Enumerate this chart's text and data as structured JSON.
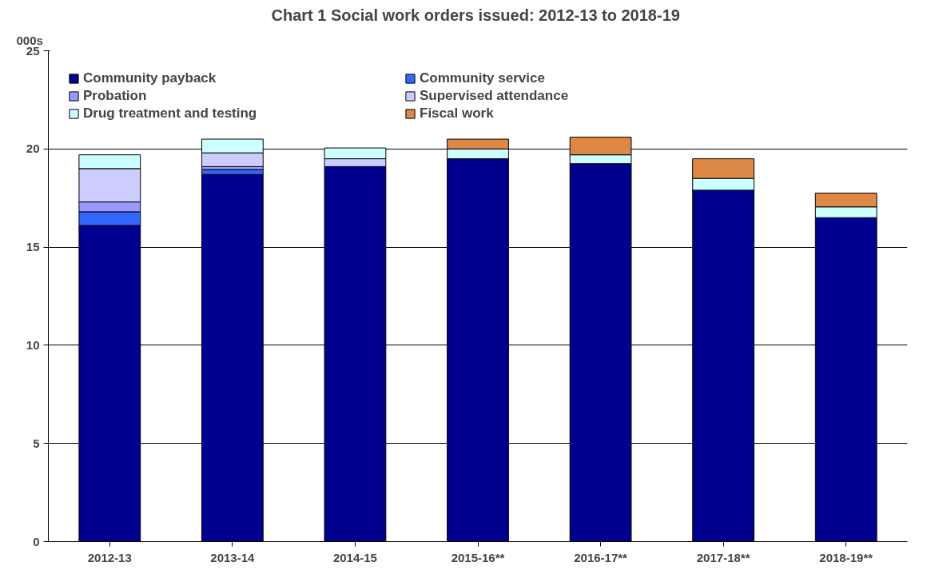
{
  "chart_data": {
    "type": "bar",
    "stacked": true,
    "title": "Chart 1  Social work orders issued: 2012-13 to 2018-19",
    "ylabel": "000s",
    "categories": [
      "2012-13",
      "2013-14",
      "2014-15",
      "2015-16**",
      "2016-17**",
      "2017-18**",
      "2018-19**"
    ],
    "series": [
      {
        "name": "Community payback",
        "color": "#000090",
        "values": [
          16.1,
          18.7,
          19.1,
          19.5,
          19.25,
          17.9,
          16.5
        ]
      },
      {
        "name": "Community service",
        "color": "#3366ff",
        "values": [
          0.7,
          0.25,
          null,
          null,
          null,
          null,
          null
        ]
      },
      {
        "name": "Probation",
        "color": "#9999ff",
        "values": [
          0.5,
          0.15,
          null,
          null,
          null,
          null,
          null
        ]
      },
      {
        "name": "Supervised attendance",
        "color": "#ccccff",
        "values": [
          1.7,
          0.7,
          0.4,
          null,
          null,
          null,
          null
        ]
      },
      {
        "name": "Drug treatment and testing",
        "color": "#ccffff",
        "values": [
          0.7,
          0.7,
          0.55,
          0.5,
          0.45,
          0.6,
          0.55
        ]
      },
      {
        "name": "Fiscal work",
        "color": "#dd8844",
        "values": [
          null,
          null,
          null,
          0.5,
          0.9,
          1.0,
          0.7
        ]
      }
    ],
    "ylim": [
      0,
      25
    ],
    "yticks": [
      0,
      5,
      10,
      15,
      20,
      25
    ],
    "grid": "y",
    "legend": "top left"
  }
}
